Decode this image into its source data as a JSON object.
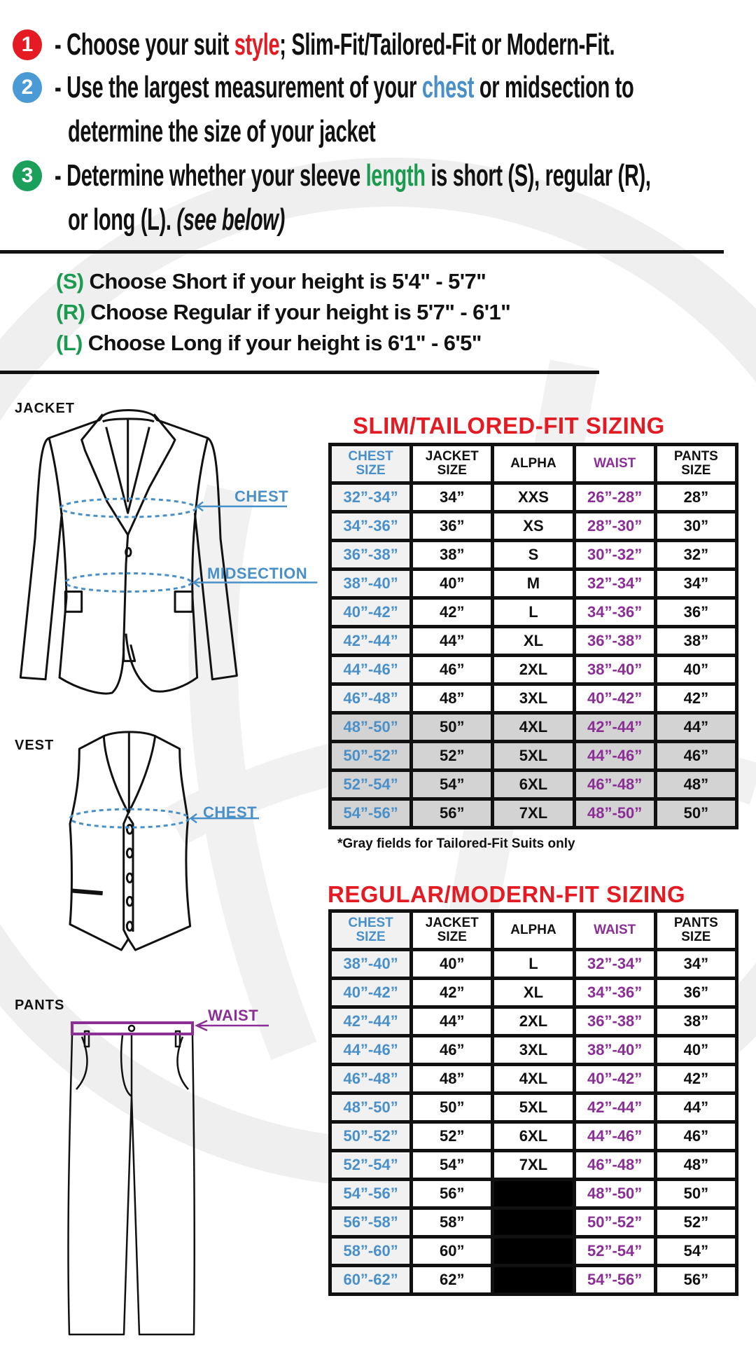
{
  "colors": {
    "red": "#e41b23",
    "blue": "#4a90c8",
    "green": "#1c9b50",
    "purple": "#8b2f96",
    "gray_field": "#d3d3d3"
  },
  "steps": [
    {
      "number": "1",
      "color": "#e41b23",
      "pre": "- Choose your suit ",
      "highlight": "style",
      "post": "; Slim-Fit/Tailored-Fit or Modern-Fit."
    },
    {
      "number": "2",
      "color": "#4a90c8",
      "pre": "- Use the largest measurement of your ",
      "highlight": "chest",
      "post": " or midsection to",
      "cont": "determine the size of your jacket"
    },
    {
      "number": "3",
      "color": "#1c9b50",
      "pre": "- Determine whether your sleeve ",
      "highlight": "length",
      "post": " is short (S), regular (R),",
      "cont": "or long (L). ",
      "cont_italic": "(see below)"
    }
  ],
  "lengths": [
    {
      "code": "(S)",
      "text": " Choose Short if your height is 5'4\" - 5'7\""
    },
    {
      "code": "(R)",
      "text": " Choose Regular if your height is  5'7\" - 6'1\""
    },
    {
      "code": "(L)",
      "text": " Choose Long if your height is  6'1\" - 6'5\""
    }
  ],
  "garments": {
    "jacket": "JACKET",
    "vest": "VEST",
    "pants": "PANTS",
    "jacket_chest": "CHEST",
    "jacket_midsection": "MIDSECTION",
    "vest_chest": "CHEST",
    "pants_waist": "WAIST"
  },
  "slim_table": {
    "title": "SLIM/TAILORED-FIT SIZING",
    "headers": [
      [
        "CHEST",
        "SIZE"
      ],
      [
        "JACKET",
        "SIZE"
      ],
      [
        "ALPHA",
        ""
      ],
      [
        "WAIST",
        ""
      ],
      [
        "PANTS",
        "SIZE"
      ]
    ],
    "rows": [
      {
        "cells": [
          "32”-34”",
          "34”",
          "XXS",
          "26”-28”",
          "28”"
        ],
        "gray": false
      },
      {
        "cells": [
          "34”-36”",
          "36”",
          "XS",
          "28”-30”",
          "30”"
        ],
        "gray": false
      },
      {
        "cells": [
          "36”-38”",
          "38”",
          "S",
          "30”-32”",
          "32”"
        ],
        "gray": false
      },
      {
        "cells": [
          "38”-40”",
          "40”",
          "M",
          "32”-34”",
          "34”"
        ],
        "gray": false
      },
      {
        "cells": [
          "40”-42”",
          "42”",
          "L",
          "34”-36”",
          "36”"
        ],
        "gray": false
      },
      {
        "cells": [
          "42”-44”",
          "44”",
          "XL",
          "36”-38”",
          "38”"
        ],
        "gray": false
      },
      {
        "cells": [
          "44”-46”",
          "46”",
          "2XL",
          "38”-40”",
          "40”"
        ],
        "gray": false
      },
      {
        "cells": [
          "46”-48”",
          "48”",
          "3XL",
          "40”-42”",
          "42”"
        ],
        "gray": false
      },
      {
        "cells": [
          "48”-50”",
          "50”",
          "4XL",
          "42”-44”",
          "44”"
        ],
        "gray": true
      },
      {
        "cells": [
          "50”-52”",
          "52”",
          "5XL",
          "44”-46”",
          "46”"
        ],
        "gray": true
      },
      {
        "cells": [
          "52”-54”",
          "54”",
          "6XL",
          "46”-48”",
          "48”"
        ],
        "gray": true
      },
      {
        "cells": [
          "54”-56”",
          "56”",
          "7XL",
          "48”-50”",
          "50”"
        ],
        "gray": true
      }
    ],
    "note": "*Gray fields for Tailored-Fit Suits only"
  },
  "regular_table": {
    "title": "REGULAR/MODERN-FIT SIZING",
    "headers": [
      [
        "CHEST",
        "SIZE"
      ],
      [
        "JACKET",
        "SIZE"
      ],
      [
        "ALPHA",
        ""
      ],
      [
        "WAIST",
        ""
      ],
      [
        "PANTS",
        "SIZE"
      ]
    ],
    "rows": [
      {
        "cells": [
          "38”-40”",
          "40”",
          "L",
          "32”-34”",
          "34”"
        ]
      },
      {
        "cells": [
          "40”-42”",
          "42”",
          "XL",
          "34”-36”",
          "36”"
        ]
      },
      {
        "cells": [
          "42”-44”",
          "44”",
          "2XL",
          "36”-38”",
          "38”"
        ]
      },
      {
        "cells": [
          "44”-46”",
          "46”",
          "3XL",
          "38”-40”",
          "40”"
        ]
      },
      {
        "cells": [
          "46”-48”",
          "48”",
          "4XL",
          "40”-42”",
          "42”"
        ]
      },
      {
        "cells": [
          "48”-50”",
          "50”",
          "5XL",
          "42”-44”",
          "44”"
        ]
      },
      {
        "cells": [
          "50”-52”",
          "52”",
          "6XL",
          "44”-46”",
          "46”"
        ]
      },
      {
        "cells": [
          "52”-54”",
          "54”",
          "7XL",
          "46”-48”",
          "48”"
        ]
      },
      {
        "cells": [
          "54”-56”",
          "56”",
          null,
          "48”-50”",
          "50”"
        ]
      },
      {
        "cells": [
          "56”-58”",
          "58”",
          null,
          "50”-52”",
          "52”"
        ]
      },
      {
        "cells": [
          "58”-60”",
          "60”",
          null,
          "52”-54”",
          "54”"
        ]
      },
      {
        "cells": [
          "60”-62”",
          "62”",
          null,
          "54”-56”",
          "56”"
        ]
      }
    ]
  }
}
